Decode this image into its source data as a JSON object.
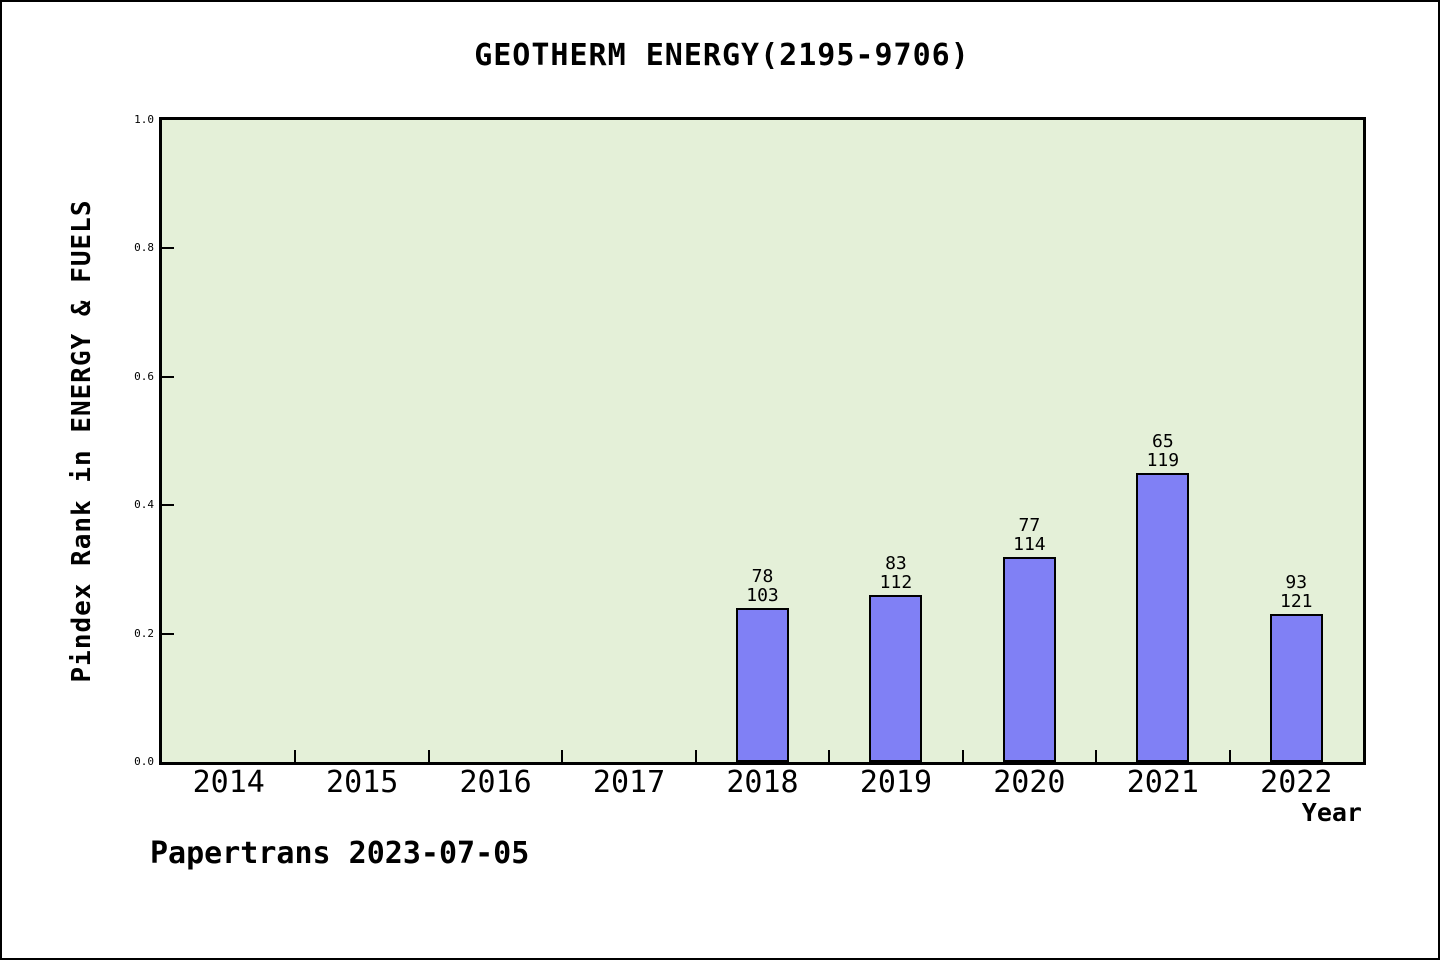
{
  "page": {
    "background": "#ffffff",
    "border_color": "#000000"
  },
  "header": {
    "title": "GEOTHERM ENERGY(2195-9706)"
  },
  "footer": {
    "text": "Papertrans 2023-07-05"
  },
  "colors": {
    "bar_fill": "#8080f5",
    "bar_border": "#000000",
    "plot_bg": "#e4f0d8",
    "frame": "#000000",
    "tick": "#000000",
    "text": "#000000"
  },
  "chart_data": {
    "type": "bar",
    "title": "GEOTHERM ENERGY(2195-9706)",
    "xlabel": "Year",
    "ylabel": "Pindex Rank in ENERGY & FUELS",
    "categories": [
      "2014",
      "2015",
      "2016",
      "2017",
      "2018",
      "2019",
      "2020",
      "2021",
      "2022"
    ],
    "yticks": [
      "0.0",
      "0.2",
      "0.4",
      "0.6",
      "0.8",
      "1.0"
    ],
    "ylim": [
      0.0,
      1.0
    ],
    "grid": false,
    "legend_position": "none",
    "bars": [
      {
        "category": "2018",
        "value": 0.24,
        "label_top": "78",
        "label_bottom": "103"
      },
      {
        "category": "2019",
        "value": 0.26,
        "label_top": "83",
        "label_bottom": "112"
      },
      {
        "category": "2020",
        "value": 0.32,
        "label_top": "77",
        "label_bottom": "114"
      },
      {
        "category": "2021",
        "value": 0.45,
        "label_top": "65",
        "label_bottom": "119"
      },
      {
        "category": "2022",
        "value": 0.23,
        "label_top": "93",
        "label_bottom": "121"
      }
    ],
    "series": [
      {
        "name": "Pindex Rank",
        "values": [
          null,
          null,
          null,
          null,
          0.24,
          0.26,
          0.32,
          0.45,
          0.23
        ]
      }
    ],
    "footnote": "Papertrans 2023-07-05"
  }
}
